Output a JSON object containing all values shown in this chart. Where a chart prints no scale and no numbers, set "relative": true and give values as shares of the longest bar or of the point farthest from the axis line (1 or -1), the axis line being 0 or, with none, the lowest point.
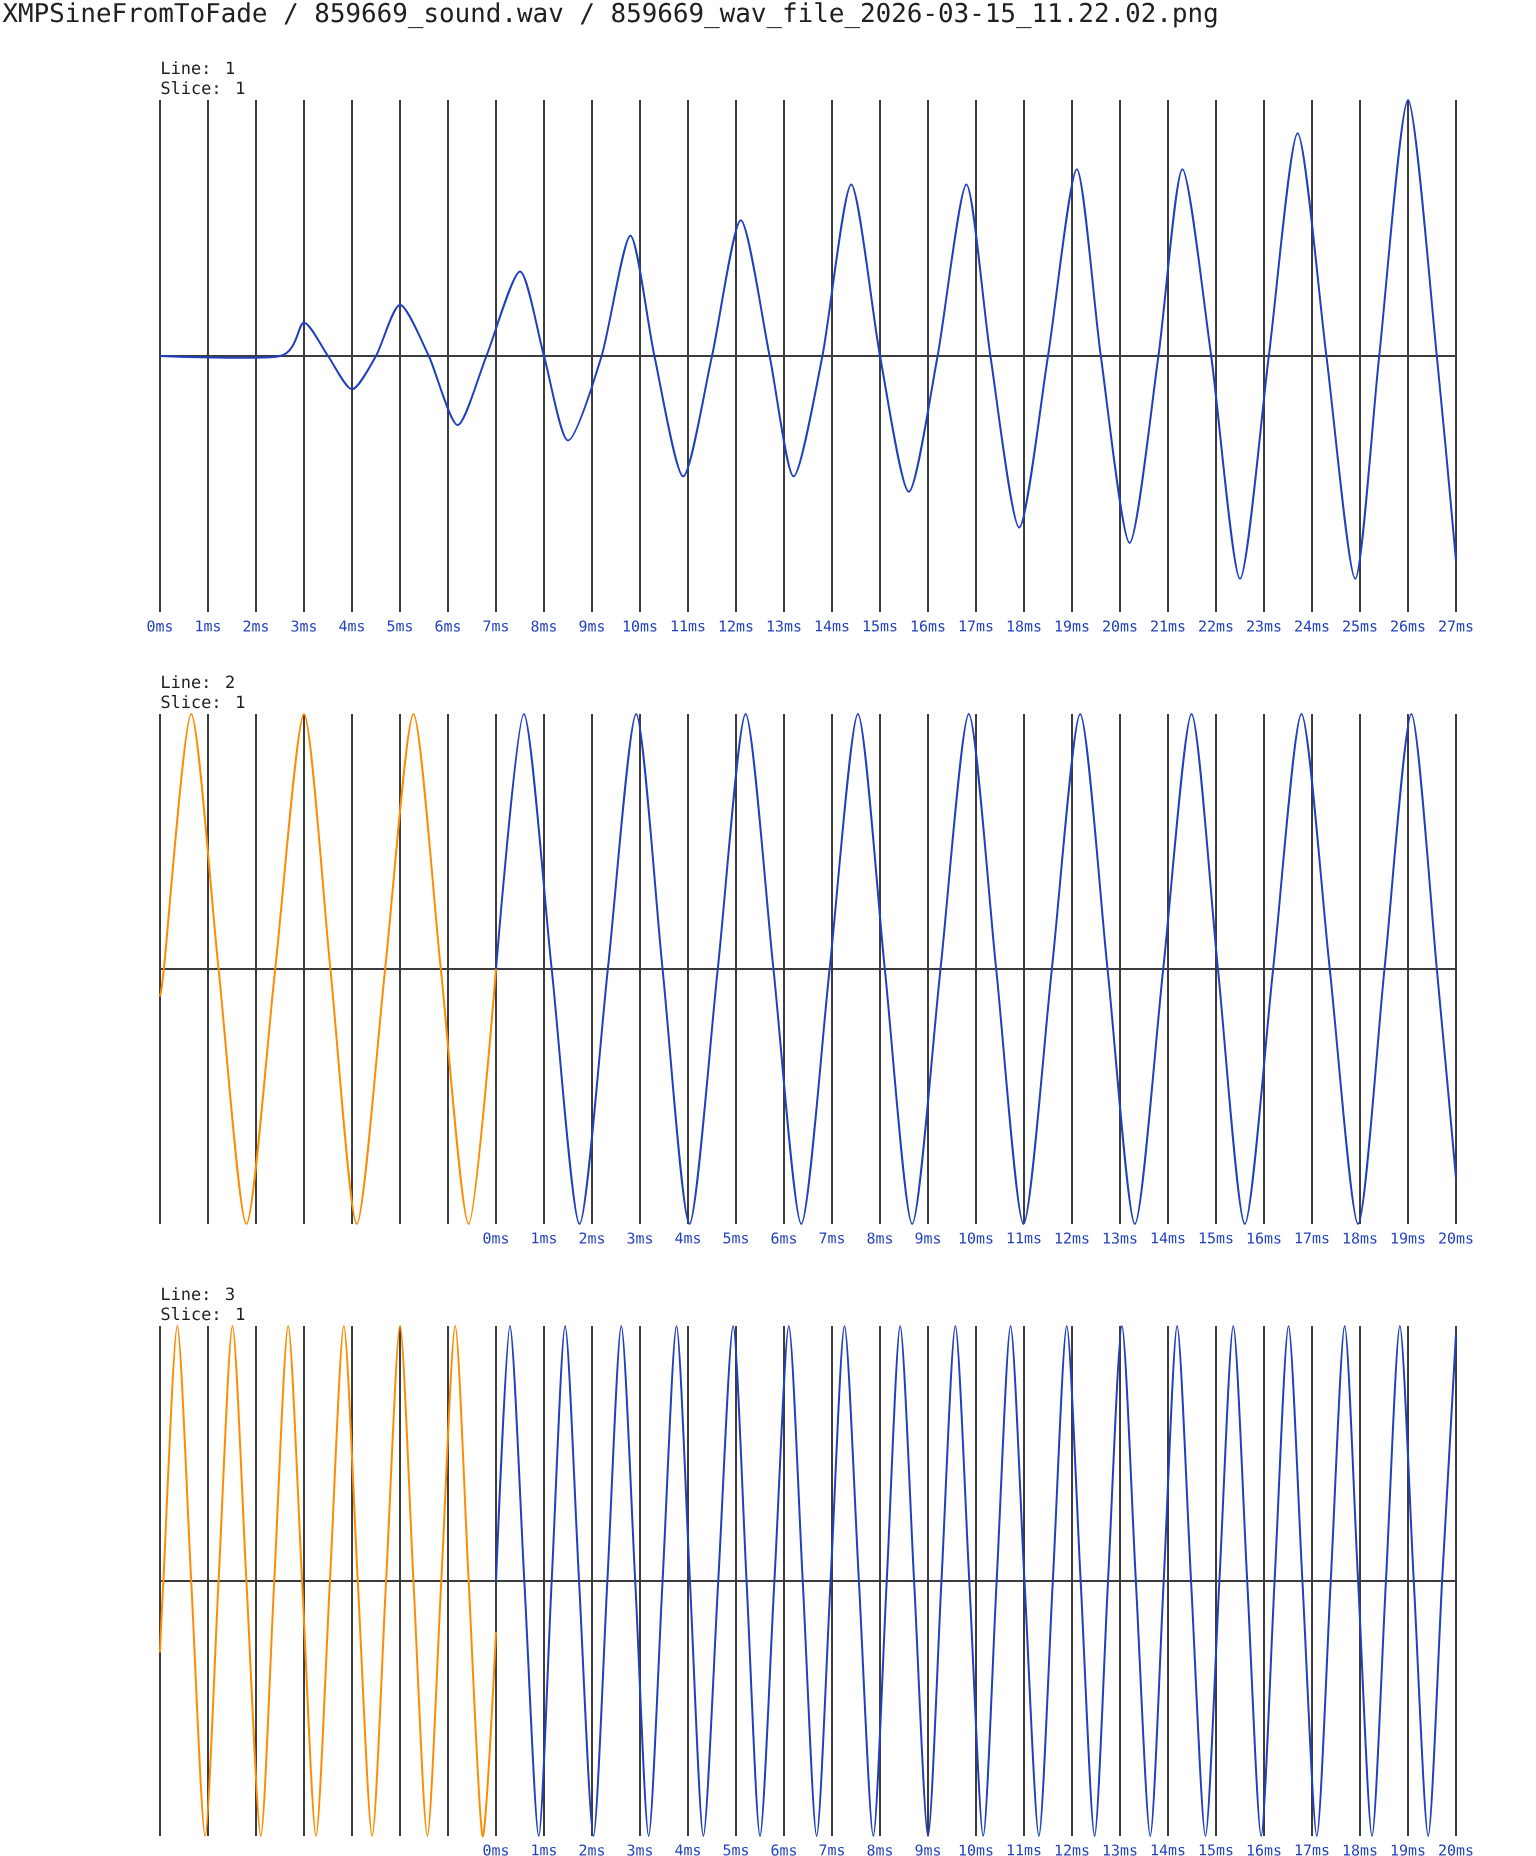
{
  "chart_data": [
    {
      "type": "line",
      "title": "Line: 1",
      "subtitle": "Slice: 1",
      "annotations": [
        "XMPSineFromToFade / 859669_sound.wav / 859669_wav_file_2026-03-15_11.22.02.png"
      ],
      "relative": true,
      "grid": "x",
      "xlim": [
        0,
        27
      ],
      "xticks": [
        {
          "value": 0,
          "label": "0ms"
        },
        {
          "value": 1,
          "label": "1ms"
        },
        {
          "value": 2,
          "label": "2ms"
        },
        {
          "value": 3,
          "label": "3ms"
        },
        {
          "value": 4,
          "label": "4ms"
        },
        {
          "value": 5,
          "label": "5ms"
        },
        {
          "value": 6,
          "label": "6ms"
        },
        {
          "value": 7,
          "label": "7ms"
        },
        {
          "value": 8,
          "label": "8ms"
        },
        {
          "value": 9,
          "label": "9ms"
        },
        {
          "value": 10,
          "label": "10ms"
        },
        {
          "value": 11,
          "label": "11ms"
        },
        {
          "value": 12,
          "label": "12ms"
        },
        {
          "value": 13,
          "label": "13ms"
        },
        {
          "value": 14,
          "label": "14ms"
        },
        {
          "value": 15,
          "label": "15ms"
        },
        {
          "value": 16,
          "label": "16ms"
        },
        {
          "value": 17,
          "label": "17ms"
        },
        {
          "value": 18,
          "label": "18ms"
        },
        {
          "value": 19,
          "label": "19ms"
        },
        {
          "value": 20,
          "label": "20ms"
        },
        {
          "value": 21,
          "label": "21ms"
        },
        {
          "value": 22,
          "label": "22ms"
        },
        {
          "value": 23,
          "label": "23ms"
        },
        {
          "value": 24,
          "label": "24ms"
        },
        {
          "value": 25,
          "label": "25ms"
        },
        {
          "value": 26,
          "label": "26ms"
        },
        {
          "value": 27,
          "label": "27ms"
        }
      ],
      "ref_lines": [
        {
          "axis": "y",
          "value": 0,
          "color": "#3c3c3c"
        }
      ],
      "series": [
        {
          "color": "#2040c0",
          "x": [
            0,
            2.5,
            3.0,
            3.5,
            4.0,
            4.5,
            5.0,
            5.6,
            6.2,
            6.8,
            7.5,
            8.0,
            8.5,
            9.2,
            9.8,
            10.3,
            10.9,
            11.5,
            12.1,
            12.7,
            13.2,
            13.8,
            14.4,
            15.0,
            15.6,
            16.2,
            16.8,
            17.3,
            17.9,
            18.5,
            19.1,
            19.6,
            20.2,
            20.8,
            21.3,
            21.9,
            22.5,
            23.1,
            23.7,
            24.3,
            24.9,
            25.4,
            26.0,
            26.6,
            27
          ],
          "values": [
            0,
            0,
            0.13,
            0,
            -0.13,
            0,
            0.2,
            0,
            -0.27,
            0,
            0.33,
            0,
            -0.33,
            0,
            0.47,
            0,
            -0.47,
            0,
            0.53,
            0,
            -0.47,
            0,
            0.67,
            0,
            -0.53,
            0,
            0.67,
            0,
            -0.67,
            0,
            0.73,
            0,
            -0.73,
            0,
            0.73,
            0,
            -0.87,
            0,
            0.87,
            0,
            -0.87,
            0,
            1,
            0,
            -0.8
          ]
        }
      ]
    },
    {
      "type": "line",
      "title": "Line: 2",
      "subtitle": "Slice: 1",
      "relative": true,
      "grid": "x",
      "xlim": [
        -7,
        20
      ],
      "xticks": [
        {
          "value": -7,
          "label": null
        },
        {
          "value": -6,
          "label": null
        },
        {
          "value": -5,
          "label": null
        },
        {
          "value": -4,
          "label": null
        },
        {
          "value": -3,
          "label": null
        },
        {
          "value": -2,
          "label": null
        },
        {
          "value": -1,
          "label": null
        },
        {
          "value": 0,
          "label": "0ms"
        },
        {
          "value": 1,
          "label": "1ms"
        },
        {
          "value": 2,
          "label": "2ms"
        },
        {
          "value": 3,
          "label": "3ms"
        },
        {
          "value": 4,
          "label": "4ms"
        },
        {
          "value": 5,
          "label": "5ms"
        },
        {
          "value": 6,
          "label": "6ms"
        },
        {
          "value": 7,
          "label": "7ms"
        },
        {
          "value": 8,
          "label": "8ms"
        },
        {
          "value": 9,
          "label": "9ms"
        },
        {
          "value": 10,
          "label": "10ms"
        },
        {
          "value": 11,
          "label": "11ms"
        },
        {
          "value": 12,
          "label": "12ms"
        },
        {
          "value": 13,
          "label": "13ms"
        },
        {
          "value": 14,
          "label": "14ms"
        },
        {
          "value": 15,
          "label": "15ms"
        },
        {
          "value": 16,
          "label": "16ms"
        },
        {
          "value": 17,
          "label": "17ms"
        },
        {
          "value": 18,
          "label": "18ms"
        },
        {
          "value": 19,
          "label": "19ms"
        },
        {
          "value": 20,
          "label": "20ms"
        }
      ],
      "ref_lines": [
        {
          "axis": "y",
          "value": 0,
          "color": "#3c3c3c"
        }
      ],
      "series": [
        {
          "color": "#ff8c00",
          "x": [
            -7,
            -6.92,
            -6.35,
            -5.78,
            -5.2,
            -4.6,
            -4.0,
            -3.45,
            -2.9,
            -2.31,
            -1.72,
            -1.15,
            -0.57,
            0
          ],
          "values": [
            -0.1,
            0,
            1,
            0,
            -1,
            0,
            1,
            0,
            -1,
            0,
            1,
            0,
            -1,
            0
          ]
        },
        {
          "color": "#2040c0",
          "x": [
            0,
            0.58,
            1.16,
            1.74,
            2.33,
            2.92,
            3.47,
            4.03,
            4.62,
            5.2,
            5.78,
            6.36,
            6.95,
            7.54,
            8.1,
            8.67,
            9.26,
            9.85,
            10.42,
            10.99,
            11.58,
            12.17,
            12.74,
            13.31,
            13.9,
            14.49,
            15.04,
            15.6,
            16.19,
            16.78,
            17.37,
            17.96,
            18.51,
            19.07,
            19.6,
            20
          ],
          "values": [
            0,
            1,
            0,
            -1,
            0,
            1,
            0,
            -1,
            0,
            1,
            0,
            -1,
            0,
            1,
            0,
            -1,
            0,
            1,
            0,
            -1,
            0,
            1,
            0,
            -1,
            0,
            1,
            0,
            -1,
            0,
            1,
            0,
            -1,
            0,
            1,
            0,
            -0.82
          ]
        }
      ]
    },
    {
      "type": "line",
      "title": "Line: 3",
      "subtitle": "Slice: 1",
      "relative": true,
      "grid": "x",
      "xlim": [
        -7,
        20
      ],
      "xticks": [
        {
          "value": -7,
          "label": null
        },
        {
          "value": -6,
          "label": null
        },
        {
          "value": -5,
          "label": null
        },
        {
          "value": -4,
          "label": null
        },
        {
          "value": -3,
          "label": null
        },
        {
          "value": -2,
          "label": null
        },
        {
          "value": -1,
          "label": null
        },
        {
          "value": 0,
          "label": "0ms"
        },
        {
          "value": 1,
          "label": "1ms"
        },
        {
          "value": 2,
          "label": "2ms"
        },
        {
          "value": 3,
          "label": "3ms"
        },
        {
          "value": 4,
          "label": "4ms"
        },
        {
          "value": 5,
          "label": "5ms"
        },
        {
          "value": 6,
          "label": "6ms"
        },
        {
          "value": 7,
          "label": "7ms"
        },
        {
          "value": 8,
          "label": "8ms"
        },
        {
          "value": 9,
          "label": "9ms"
        },
        {
          "value": 10,
          "label": "10ms"
        },
        {
          "value": 11,
          "label": "11ms"
        },
        {
          "value": 12,
          "label": "12ms"
        },
        {
          "value": 13,
          "label": "13ms"
        },
        {
          "value": 14,
          "label": "14ms"
        },
        {
          "value": 15,
          "label": "15ms"
        },
        {
          "value": 16,
          "label": "16ms"
        },
        {
          "value": 17,
          "label": "17ms"
        },
        {
          "value": 18,
          "label": "18ms"
        },
        {
          "value": 19,
          "label": "19ms"
        },
        {
          "value": 20,
          "label": "20ms"
        }
      ],
      "ref_lines": [
        {
          "axis": "y",
          "value": 0,
          "color": "#3c3c3c"
        }
      ],
      "series": [
        {
          "color": "#ff8c00",
          "x": [
            -7,
            -6.93,
            -6.64,
            -6.35,
            -6.06,
            -5.78,
            -5.49,
            -5.2,
            -4.9,
            -4.62,
            -4.33,
            -4.04,
            -3.75,
            -3.46,
            -3.17,
            -2.88,
            -2.58,
            -2.29,
            -2.0,
            -1.72,
            -1.43,
            -1.14,
            -0.85,
            -0.57,
            -0.28,
            0
          ],
          "values": [
            -0.28,
            0,
            1,
            0,
            -1,
            0,
            1,
            0,
            -1,
            0,
            1,
            0,
            -1,
            0,
            1,
            0,
            -1,
            0,
            1,
            0,
            -1,
            0,
            1,
            0,
            -1,
            -0.2
          ]
        },
        {
          "color": "#2040c0",
          "x": [
            0,
            0.29,
            0.59,
            0.89,
            1.16,
            1.44,
            1.73,
            2.03,
            2.32,
            2.61,
            2.9,
            3.18,
            3.47,
            3.76,
            4.04,
            4.32,
            4.63,
            4.94,
            5.22,
            5.5,
            5.8,
            6.1,
            6.39,
            6.68,
            6.97,
            7.26,
            7.56,
            7.86,
            8.14,
            8.42,
            8.71,
            9.0,
            9.28,
            9.57,
            9.86,
            10.15,
            10.43,
            10.72,
            11.01,
            11.31,
            11.6,
            11.89,
            12.18,
            12.47,
            12.75,
            13.04,
            13.33,
            13.63,
            13.91,
            14.19,
            14.48,
            14.78,
            15.07,
            15.36,
            15.65,
            15.94,
            16.22,
            16.51,
            16.8,
            17.1,
            17.39,
            17.68,
            17.96,
            18.25,
            18.54,
            18.83,
            19.12,
            19.42,
            19.71,
            20
          ],
          "values": [
            0,
            1,
            0,
            -1,
            0,
            1,
            0,
            -1,
            0,
            1,
            0,
            -1,
            0,
            1,
            0,
            -1,
            0,
            1,
            0,
            -1,
            0,
            1,
            0,
            -1,
            0,
            1,
            0,
            -1,
            0,
            1,
            0,
            -1,
            0,
            1,
            0,
            -1,
            0,
            1,
            0,
            -1,
            0,
            1,
            0,
            -1,
            0,
            1,
            0,
            -1,
            0,
            1,
            0,
            -1,
            0,
            1,
            0,
            -1,
            0,
            1,
            0,
            -1,
            0,
            1,
            0,
            -1,
            0,
            1,
            0,
            -1,
            0,
            0.97
          ]
        }
      ]
    }
  ]
}
